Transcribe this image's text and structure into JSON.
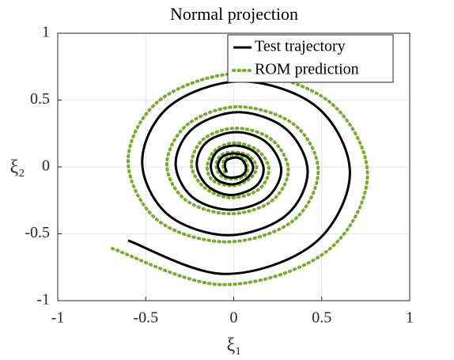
{
  "chart_data": {
    "type": "line",
    "title": "Normal projection",
    "xlabel": "ξ₁",
    "ylabel": "ξ₂",
    "xlim": [
      -1,
      1
    ],
    "ylim": [
      -1,
      1
    ],
    "xticks": [
      -1,
      -0.5,
      0,
      0.5,
      1
    ],
    "yticks": [
      -1,
      -0.5,
      0,
      0.5,
      1
    ],
    "grid": true,
    "legend": "upper right",
    "series": [
      {
        "name": "Test trajectory",
        "color": "#000000",
        "style": "solid",
        "x": [
          -0.6,
          -0.06,
          0.45,
          0.66,
          0.48,
          0.05,
          -0.36,
          -0.52,
          -0.38,
          -0.04,
          0.29,
          0.42,
          0.3,
          0.03,
          -0.23,
          -0.33,
          -0.24,
          -0.03,
          0.18,
          0.27,
          0.19,
          0.02,
          -0.15,
          -0.21,
          -0.15,
          -0.02,
          0.12,
          0.17,
          0.12,
          0.01,
          -0.09,
          -0.13,
          -0.1,
          -0.01,
          0.07,
          0.11,
          0.08,
          0.01,
          -0.06,
          -0.09,
          -0.06,
          -0.01,
          0.05,
          0.07,
          0.05,
          0.01,
          -0.04,
          -0.05,
          -0.04
        ],
        "values": [
          -0.55,
          -0.8,
          -0.58,
          -0.06,
          0.44,
          0.64,
          0.46,
          0.05,
          -0.35,
          -0.51,
          -0.37,
          -0.04,
          0.28,
          0.41,
          0.29,
          0.03,
          -0.22,
          -0.32,
          -0.24,
          -0.03,
          0.18,
          0.26,
          0.19,
          0.02,
          -0.14,
          -0.21,
          -0.15,
          -0.02,
          0.11,
          0.16,
          0.12,
          0.01,
          -0.09,
          -0.13,
          -0.09,
          -0.01,
          0.07,
          0.1,
          0.08,
          0.01,
          -0.06,
          -0.08,
          -0.06,
          -0.01,
          0.05,
          0.07,
          0.05,
          0.01,
          -0.04
        ]
      },
      {
        "name": "ROM prediction",
        "color": "#77ac30",
        "style": "dotted",
        "x": [
          -0.69,
          -0.07,
          0.52,
          0.76,
          0.55,
          0.06,
          -0.41,
          -0.6,
          -0.44,
          -0.05,
          0.33,
          0.48,
          0.35,
          0.03,
          -0.26,
          -0.38,
          -0.28,
          -0.03,
          0.21,
          0.31,
          0.22,
          0.02,
          -0.17,
          -0.24,
          -0.17,
          -0.02,
          0.14,
          0.2,
          0.14,
          0.01,
          -0.1,
          -0.15,
          -0.12,
          -0.01,
          0.08,
          0.13,
          0.09,
          0.01,
          -0.07,
          -0.1,
          -0.07,
          -0.01,
          0.06,
          0.08,
          0.06,
          0.01,
          -0.05,
          -0.06,
          -0.05
        ],
        "values": [
          -0.61,
          -0.88,
          -0.64,
          -0.07,
          0.48,
          0.7,
          0.51,
          0.06,
          -0.39,
          -0.56,
          -0.41,
          -0.04,
          0.31,
          0.45,
          0.32,
          0.03,
          -0.24,
          -0.35,
          -0.26,
          -0.03,
          0.2,
          0.29,
          0.21,
          0.02,
          -0.15,
          -0.23,
          -0.17,
          -0.02,
          0.12,
          0.18,
          0.13,
          0.01,
          -0.1,
          -0.14,
          -0.1,
          -0.01,
          0.08,
          0.11,
          0.09,
          0.01,
          -0.07,
          -0.09,
          -0.07,
          -0.01,
          0.06,
          0.08,
          0.06,
          0.01,
          -0.04
        ]
      }
    ]
  }
}
